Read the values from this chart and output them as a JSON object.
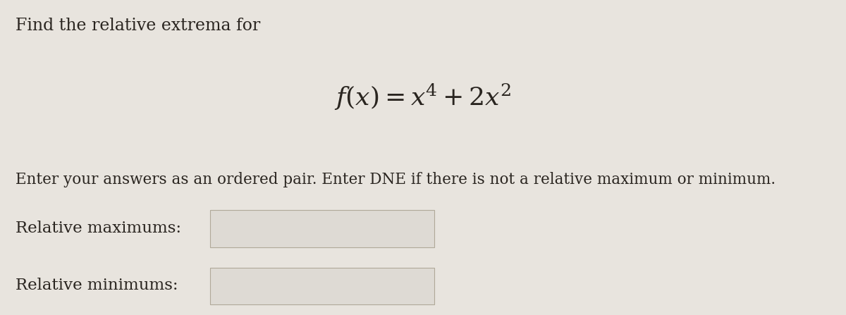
{
  "background_color": "#e8e4de",
  "title_line1": "Find the relative extrema for",
  "instruction": "Enter your answers as an ordered pair. Enter DNE if there is not a relative maximum or minimum.",
  "label_max": "Relative maximums:",
  "label_min": "Relative minimums:",
  "text_color": "#2a2520",
  "box_edge_color": "#b0a898",
  "box_face_color": "#dedad4",
  "font_size_title": 17,
  "font_size_formula": 26,
  "font_size_instruction": 15.5,
  "font_size_labels": 16.5
}
